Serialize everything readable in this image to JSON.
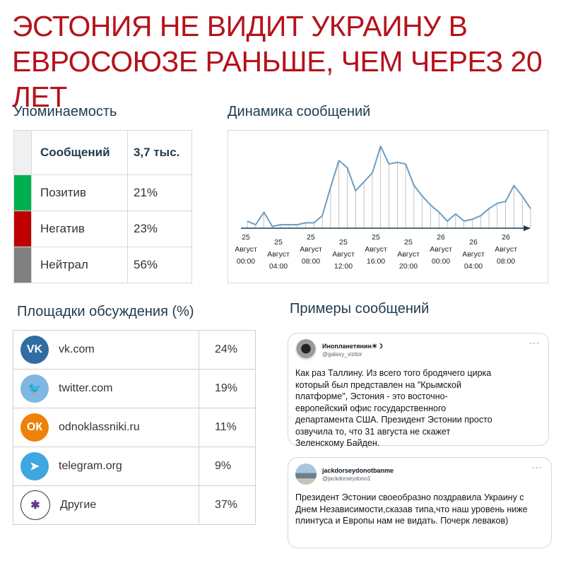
{
  "title": {
    "line1": "ЭСТОНИЯ НЕ ВИДИТ УКРАИНУ В",
    "line2": "ЕВРОСОЮЗЕ РАНЬШЕ, ЧЕМ ЧЕРЕЗ 20 ЛЕТ"
  },
  "mentions": {
    "heading": "Упоминаемость",
    "rows": [
      {
        "label": "Сообщений",
        "value": "3,7 тыс.",
        "color": "#f0f0f0"
      },
      {
        "label": "Позитив",
        "value": "21%",
        "color": "#00b050"
      },
      {
        "label": "Негатив",
        "value": "23%",
        "color": "#c00000"
      },
      {
        "label": "Нейтрал",
        "value": "56%",
        "color": "#808080"
      }
    ]
  },
  "dynamics": {
    "heading": "Динамика сообщений"
  },
  "chart_data": {
    "type": "line",
    "title": "",
    "xlabel": "",
    "ylabel": "",
    "color": "#6a9ec4",
    "values": [
      2,
      1,
      4.5,
      0.5,
      1,
      1,
      1,
      1.5,
      1.5,
      3.5,
      11.5,
      19,
      17,
      10.5,
      13,
      15.5,
      23,
      18,
      18.5,
      18,
      12,
      9,
      6.5,
      4.5,
      2,
      4,
      2,
      2.5,
      3.5,
      5.5,
      7,
      7.5,
      12,
      9,
      5.5
    ],
    "ticks": [
      {
        "day": "25",
        "month": "Август",
        "time": "00:00"
      },
      {
        "day": "25",
        "month": "Август",
        "time": "04:00"
      },
      {
        "day": "25",
        "month": "Август",
        "time": "08:00"
      },
      {
        "day": "25",
        "month": "Август",
        "time": "12:00"
      },
      {
        "day": "25",
        "month": "Август",
        "time": "16:00"
      },
      {
        "day": "25",
        "month": "Август",
        "time": "20:00"
      },
      {
        "day": "26",
        "month": "Август",
        "time": "00:00"
      },
      {
        "day": "26",
        "month": "Август",
        "time": "04:00"
      },
      {
        "day": "26",
        "month": "Август",
        "time": "08:00"
      }
    ]
  },
  "platforms": {
    "heading": "Площадки обсуждения (%)",
    "rows": [
      {
        "name": "vk.com",
        "pct": "24%",
        "icon": "vk-logo-icon",
        "color": "#2f6da3",
        "glyph": "VK"
      },
      {
        "name": "twitter.com",
        "pct": "19%",
        "icon": "twitter-logo-icon",
        "color": "#7fb7e2",
        "glyph": "🐦"
      },
      {
        "name": "odnoklassniki.ru",
        "pct": "11%",
        "icon": "odnoklassniki-logo-icon",
        "color": "#ee8208",
        "glyph": "ОК"
      },
      {
        "name": "telegram.org",
        "pct": "9%",
        "icon": "telegram-logo-icon",
        "color": "#3fa6df",
        "glyph": "➤"
      },
      {
        "name": "Другие",
        "pct": "37%",
        "icon": "network-globe-icon",
        "color": "#ffffff",
        "glyph": "✱"
      }
    ]
  },
  "examples": {
    "heading": "Примеры сообщений",
    "tweets": [
      {
        "name": "Инопланетянин☀☽",
        "handle": "@galaxy_vizitor",
        "text": "Как раз Таллину. Из всего того бродячего цирка который был представлен на \"Крымской платформе\",  Эстония - это восточно-европейский офис государственного департамента США. Президент  Эстонии просто озвучила то, что  31 августа не скажет Зеленскому Байден."
      },
      {
        "name": "jackdorseydonotbanme",
        "handle": "@jackdorseydono1",
        "text": "Президент Эстонии своеобразно поздравила Украину с Днем Независимости,сказав типа,что наш уровень ниже плинтуса и Европы нам не видать. Почерк леваков)"
      }
    ]
  }
}
